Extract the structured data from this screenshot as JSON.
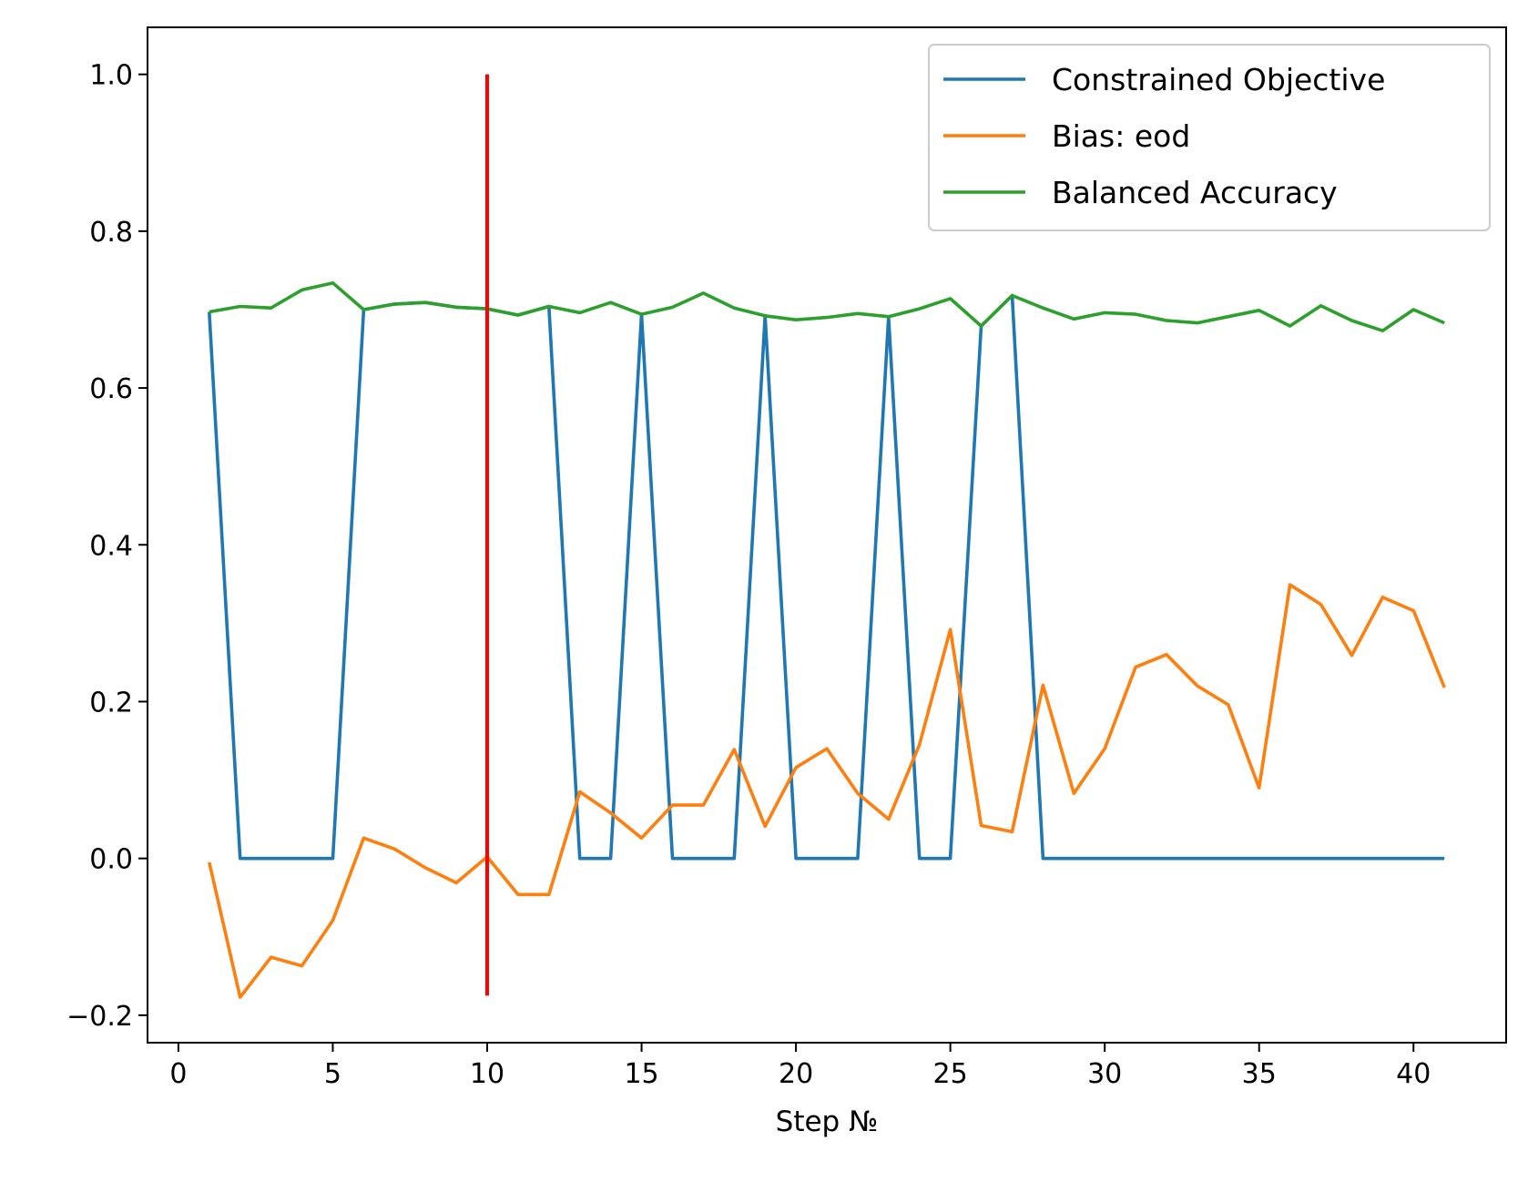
{
  "chart_data": {
    "type": "line",
    "title": "",
    "xlabel": "Step №",
    "ylabel": "",
    "xlim": [
      -1,
      43
    ],
    "ylim": [
      -0.235,
      1.06
    ],
    "xticks": [
      0,
      5,
      10,
      15,
      20,
      25,
      30,
      35,
      40
    ],
    "yticks": [
      -0.2,
      0.0,
      0.2,
      0.4,
      0.6,
      0.8,
      1.0
    ],
    "ytick_labels": [
      "−0.2",
      "0.0",
      "0.2",
      "0.4",
      "0.6",
      "0.8",
      "1.0"
    ],
    "grid": false,
    "legend_position": "top-right",
    "x": [
      1,
      2,
      3,
      4,
      5,
      6,
      7,
      8,
      9,
      10,
      11,
      12,
      13,
      14,
      15,
      16,
      17,
      18,
      19,
      20,
      21,
      22,
      23,
      24,
      25,
      26,
      27,
      28,
      29,
      30,
      31,
      32,
      33,
      34,
      35,
      36,
      37,
      38,
      39,
      40,
      41
    ],
    "series": [
      {
        "name": "Constrained Objective",
        "color": "#1f77b4",
        "values": [
          0.697,
          0,
          0,
          0,
          0,
          0.7,
          0.707,
          0.709,
          0.703,
          0.701,
          0.693,
          0.704,
          0,
          0,
          0.694,
          0,
          0,
          0,
          0.692,
          0,
          0,
          0,
          0.691,
          0,
          0,
          0.679,
          0.718,
          0,
          0,
          0,
          0,
          0,
          0,
          0,
          0,
          0,
          0,
          0,
          0,
          0,
          0
        ]
      },
      {
        "name": "Bias: eod",
        "color": "#ff7f0e",
        "values": [
          -0.005,
          -0.177,
          -0.126,
          -0.137,
          -0.079,
          0.026,
          0.012,
          -0.012,
          -0.031,
          0.002,
          -0.046,
          -0.046,
          0.085,
          0.058,
          0.026,
          0.068,
          0.068,
          0.139,
          0.041,
          0.116,
          0.14,
          0.083,
          0.05,
          0.145,
          0.292,
          0.042,
          0.034,
          0.221,
          0.083,
          0.14,
          0.244,
          0.26,
          0.22,
          0.196,
          0.09,
          0.349,
          0.324,
          0.259,
          0.333,
          0.316,
          0.218
        ]
      },
      {
        "name": "Balanced Accuracy",
        "color": "#2ca02c",
        "values": [
          0.697,
          0.704,
          0.702,
          0.725,
          0.734,
          0.7,
          0.707,
          0.709,
          0.703,
          0.701,
          0.693,
          0.704,
          0.696,
          0.709,
          0.694,
          0.703,
          0.721,
          0.702,
          0.692,
          0.687,
          0.69,
          0.695,
          0.691,
          0.701,
          0.714,
          0.679,
          0.718,
          0.702,
          0.688,
          0.696,
          0.694,
          0.686,
          0.683,
          0.691,
          0.699,
          0.679,
          0.705,
          0.686,
          0.673,
          0.7,
          0.683
        ]
      }
    ],
    "annotations": [
      {
        "type": "vertical_line",
        "x": 10,
        "y_from": -0.175,
        "y_to": 1.0,
        "color": "#ff0000"
      }
    ]
  }
}
